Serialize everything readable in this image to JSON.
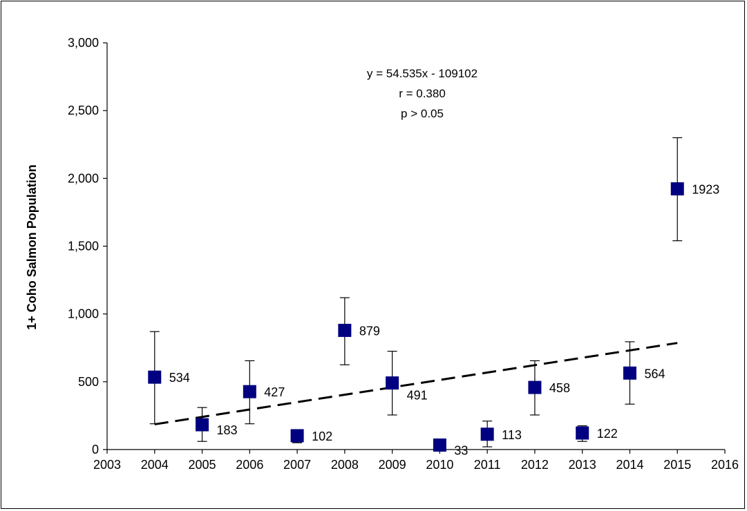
{
  "chart_data": {
    "type": "scatter",
    "title": "",
    "xlabel": "",
    "ylabel": "1+ Coho Salmon Population",
    "xlim": [
      2003,
      2016
    ],
    "ylim": [
      0,
      3000
    ],
    "x_ticks": [
      2003,
      2004,
      2005,
      2006,
      2007,
      2008,
      2009,
      2010,
      2011,
      2012,
      2013,
      2014,
      2015,
      2016
    ],
    "y_ticks": [
      0,
      500,
      1000,
      1500,
      2000,
      2500,
      3000
    ],
    "y_tick_labels": [
      "0",
      "500",
      "1,000",
      "1,500",
      "2,000",
      "2,500",
      "3,000"
    ],
    "grid": false,
    "marker_color": "#000080",
    "points": [
      {
        "x": 2004,
        "y": 534,
        "label": "534",
        "err_low": 190,
        "err_high": 870
      },
      {
        "x": 2005,
        "y": 183,
        "label": "183",
        "err_low": 60,
        "err_high": 310
      },
      {
        "x": 2006,
        "y": 427,
        "label": "427",
        "err_low": 190,
        "err_high": 655
      },
      {
        "x": 2007,
        "y": 102,
        "label": "102",
        "err_low": 50,
        "err_high": 140
      },
      {
        "x": 2008,
        "y": 879,
        "label": "879",
        "err_low": 625,
        "err_high": 1120
      },
      {
        "x": 2009,
        "y": 491,
        "label": "491",
        "err_low": 255,
        "err_high": 725
      },
      {
        "x": 2010,
        "y": 33,
        "label": "33",
        "err_low": 0,
        "err_high": 60
      },
      {
        "x": 2011,
        "y": 113,
        "label": "113",
        "err_low": 20,
        "err_high": 210
      },
      {
        "x": 2012,
        "y": 458,
        "label": "458",
        "err_low": 255,
        "err_high": 655
      },
      {
        "x": 2013,
        "y": 122,
        "label": "122",
        "err_low": 60,
        "err_high": 175
      },
      {
        "x": 2014,
        "y": 564,
        "label": "564",
        "err_low": 335,
        "err_high": 795
      },
      {
        "x": 2015,
        "y": 1923,
        "label": "1923",
        "err_low": 1540,
        "err_high": 2300
      }
    ],
    "trendline": {
      "slope": 54.535,
      "intercept": -109102,
      "x_range": [
        2004,
        2015
      ],
      "style": "dashed"
    },
    "annotation": [
      "y = 54.535x - 109102",
      "r = 0.380",
      "p > 0.05"
    ]
  }
}
